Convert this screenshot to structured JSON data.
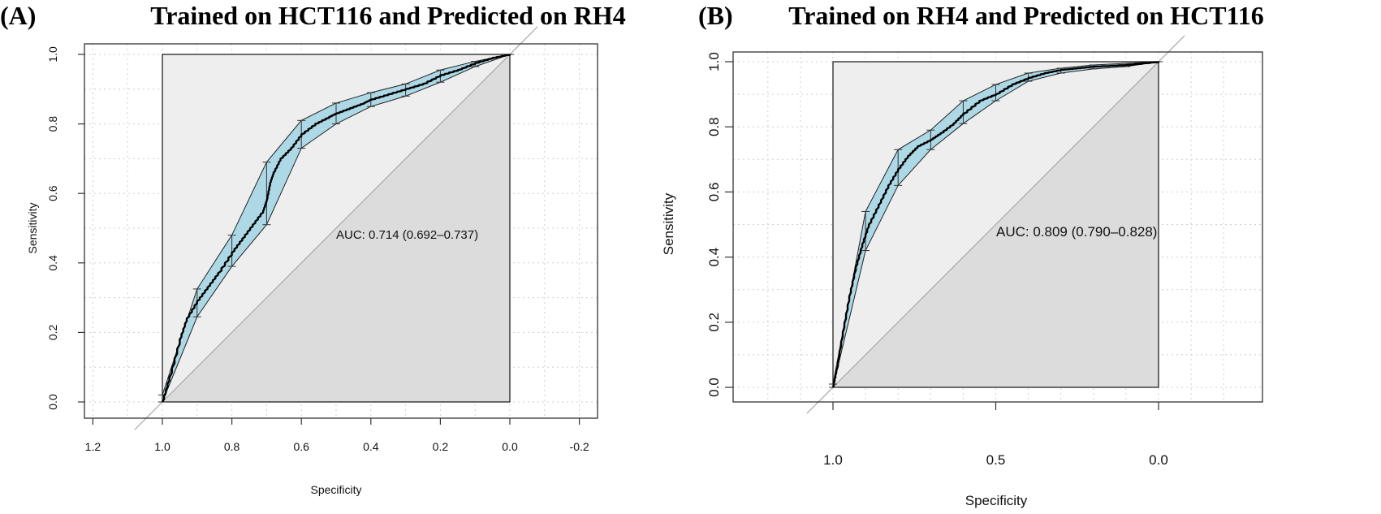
{
  "chart_data": [
    {
      "type": "line",
      "panel_label": "(A)",
      "title": "Trained on HCT116 and Predicted on RH4",
      "xlabel": "Specificity",
      "ylabel": "Sensitivity",
      "x_reversed": true,
      "xlim": [
        1.2,
        -0.2
      ],
      "ylim": [
        0.0,
        1.0
      ],
      "x_ticks": [
        "1.2",
        "1.0",
        "0.8",
        "0.6",
        "0.4",
        "0.2",
        "0.0",
        "-0.2"
      ],
      "x_tick_values": [
        1.2,
        1.0,
        0.8,
        0.6,
        0.4,
        0.2,
        0.0,
        -0.2
      ],
      "y_ticks": [
        "0.0",
        "0.2",
        "0.4",
        "0.6",
        "0.8",
        "1.0"
      ],
      "y_tick_values": [
        0.0,
        0.2,
        0.4,
        0.6,
        0.8,
        1.0
      ],
      "grid": true,
      "annotation": "AUC: 0.714 (0.692–0.737)",
      "auc": 0.714,
      "auc_ci": [
        0.692,
        0.737
      ],
      "annotation_position": [
        0.5,
        0.48
      ],
      "ci_specificity": [
        1.0,
        0.9,
        0.8,
        0.7,
        0.6,
        0.5,
        0.4,
        0.3,
        0.2,
        0.1,
        0.0
      ],
      "ci_lower": [
        0.0,
        0.245,
        0.39,
        0.51,
        0.73,
        0.8,
        0.85,
        0.88,
        0.92,
        0.965,
        1.0
      ],
      "ci_upper": [
        0.02,
        0.325,
        0.48,
        0.69,
        0.81,
        0.86,
        0.89,
        0.915,
        0.955,
        0.98,
        1.0
      ],
      "series": [
        {
          "name": "ROC",
          "specificity": [
            1.0,
            0.98,
            0.95,
            0.93,
            0.9,
            0.87,
            0.84,
            0.8,
            0.77,
            0.74,
            0.71,
            0.7,
            0.69,
            0.68,
            0.66,
            0.63,
            0.6,
            0.56,
            0.52,
            0.5,
            0.46,
            0.42,
            0.4,
            0.35,
            0.3,
            0.25,
            0.2,
            0.15,
            0.1,
            0.05,
            0.0
          ],
          "sensitivity": [
            0.0,
            0.07,
            0.18,
            0.24,
            0.29,
            0.33,
            0.37,
            0.43,
            0.47,
            0.51,
            0.55,
            0.58,
            0.63,
            0.66,
            0.7,
            0.73,
            0.77,
            0.8,
            0.82,
            0.83,
            0.845,
            0.86,
            0.87,
            0.885,
            0.9,
            0.915,
            0.94,
            0.955,
            0.975,
            0.99,
            1.0
          ]
        }
      ]
    },
    {
      "type": "line",
      "panel_label": "(B)",
      "title": "Trained on RH4 and Predicted on HCT116",
      "xlabel": "Specificity",
      "ylabel": "Sensitivity",
      "x_reversed": true,
      "xlim": [
        1.35,
        -0.35
      ],
      "ylim": [
        0.0,
        1.0
      ],
      "x_ticks": [
        "1.0",
        "0.5",
        "0.0"
      ],
      "x_tick_values": [
        1.0,
        0.5,
        0.0
      ],
      "y_ticks": [
        "0.0",
        "0.2",
        "0.4",
        "0.6",
        "0.8",
        "1.0"
      ],
      "y_tick_values": [
        0.0,
        0.2,
        0.4,
        0.6,
        0.8,
        1.0
      ],
      "grid": true,
      "annotation": "AUC: 0.809 (0.790–0.828)",
      "auc": 0.809,
      "auc_ci": [
        0.79,
        0.828
      ],
      "annotation_position": [
        0.5,
        0.48
      ],
      "ci_specificity": [
        1.0,
        0.9,
        0.8,
        0.7,
        0.6,
        0.5,
        0.4,
        0.3,
        0.2,
        0.1,
        0.0
      ],
      "ci_lower": [
        0.0,
        0.42,
        0.62,
        0.73,
        0.81,
        0.88,
        0.94,
        0.965,
        0.978,
        0.985,
        1.0
      ],
      "ci_upper": [
        0.01,
        0.54,
        0.73,
        0.79,
        0.88,
        0.93,
        0.965,
        0.98,
        0.99,
        0.995,
        1.0
      ],
      "series": [
        {
          "name": "ROC",
          "specificity": [
            1.0,
            0.99,
            0.97,
            0.95,
            0.93,
            0.91,
            0.89,
            0.86,
            0.83,
            0.8,
            0.77,
            0.74,
            0.7,
            0.67,
            0.63,
            0.6,
            0.55,
            0.5,
            0.45,
            0.4,
            0.35,
            0.3,
            0.25,
            0.2,
            0.1,
            0.0
          ],
          "sensitivity": [
            0.0,
            0.05,
            0.17,
            0.28,
            0.37,
            0.44,
            0.5,
            0.56,
            0.62,
            0.67,
            0.71,
            0.74,
            0.76,
            0.78,
            0.81,
            0.84,
            0.88,
            0.9,
            0.93,
            0.95,
            0.965,
            0.975,
            0.98,
            0.985,
            0.99,
            1.0
          ]
        }
      ]
    }
  ]
}
